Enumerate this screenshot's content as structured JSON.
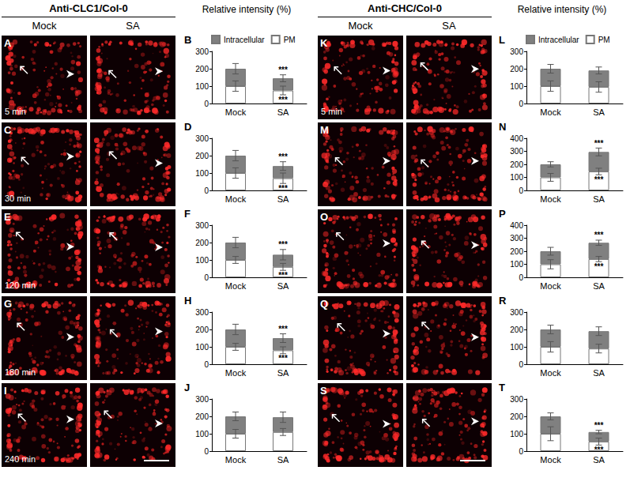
{
  "groups": [
    {
      "title": "Anti-CLC1/Col-0",
      "columns": [
        "Mock",
        "SA"
      ],
      "chart_heading": "Relative intensity (%)",
      "images": [
        {
          "letter": "A",
          "time": "5 min"
        },
        {
          "letter": "C",
          "time": "30 min"
        },
        {
          "letter": "E",
          "time": "120 min"
        },
        {
          "letter": "G",
          "time": "180 min"
        },
        {
          "letter": "I",
          "time": "240 min"
        }
      ]
    },
    {
      "title": "Anti-CHC/Col-0",
      "columns": [
        "Mock",
        "SA"
      ],
      "chart_heading": "Relative intensity (%)",
      "images": [
        {
          "letter": "K",
          "time": "5 min"
        },
        {
          "letter": "M"
        },
        {
          "letter": "O"
        },
        {
          "letter": "Q"
        },
        {
          "letter": "S"
        }
      ]
    }
  ],
  "chart_data": [
    {
      "type": "bar",
      "stacked": true,
      "letter": "B",
      "categories": [
        "Mock",
        "SA"
      ],
      "grid": false,
      "legend": "top",
      "ylim": [
        0,
        300
      ],
      "yticks": [
        0,
        100,
        200,
        300
      ],
      "series": [
        {
          "name": "PM",
          "color": "#ffffff",
          "values": [
            100,
            75
          ],
          "errors": [
            30,
            25
          ],
          "annotations": [
            null,
            "***"
          ]
        },
        {
          "name": "Intracellular",
          "color": "#808080",
          "values": [
            100,
            70
          ],
          "errors": [
            30,
            20
          ],
          "annotations": [
            null,
            "***"
          ]
        }
      ]
    },
    {
      "type": "bar",
      "stacked": true,
      "letter": "D",
      "categories": [
        "Mock",
        "SA"
      ],
      "grid": false,
      "ylim": [
        0,
        300
      ],
      "yticks": [
        0,
        100,
        200,
        300
      ],
      "series": [
        {
          "name": "PM",
          "color": "#ffffff",
          "values": [
            100,
            70
          ],
          "errors": [
            30,
            30
          ],
          "annotations": [
            null,
            "***"
          ]
        },
        {
          "name": "Intracellular",
          "color": "#808080",
          "values": [
            100,
            70
          ],
          "errors": [
            30,
            25
          ],
          "annotations": [
            null,
            "***"
          ]
        }
      ]
    },
    {
      "type": "bar",
      "stacked": true,
      "letter": "F",
      "categories": [
        "Mock",
        "SA"
      ],
      "grid": false,
      "ylim": [
        0,
        300
      ],
      "yticks": [
        0,
        100,
        200,
        300
      ],
      "series": [
        {
          "name": "PM",
          "color": "#ffffff",
          "values": [
            100,
            60
          ],
          "errors": [
            20,
            20
          ],
          "annotations": [
            null,
            "***"
          ]
        },
        {
          "name": "Intracellular",
          "color": "#808080",
          "values": [
            100,
            70
          ],
          "errors": [
            30,
            30
          ],
          "annotations": [
            null,
            "***"
          ]
        }
      ]
    },
    {
      "type": "bar",
      "stacked": true,
      "letter": "H",
      "categories": [
        "Mock",
        "SA"
      ],
      "grid": false,
      "ylim": [
        0,
        300
      ],
      "yticks": [
        0,
        100,
        200,
        300
      ],
      "series": [
        {
          "name": "PM",
          "color": "#ffffff",
          "values": [
            100,
            80
          ],
          "errors": [
            20,
            20
          ],
          "annotations": [
            null,
            "***"
          ]
        },
        {
          "name": "Intracellular",
          "color": "#808080",
          "values": [
            100,
            70
          ],
          "errors": [
            30,
            25
          ],
          "annotations": [
            null,
            "***"
          ]
        }
      ]
    },
    {
      "type": "bar",
      "stacked": true,
      "letter": "J",
      "categories": [
        "Mock",
        "SA"
      ],
      "grid": false,
      "ylim": [
        0,
        300
      ],
      "yticks": [
        0,
        100,
        200,
        300
      ],
      "series": [
        {
          "name": "PM",
          "color": "#ffffff",
          "values": [
            100,
            110
          ],
          "errors": [
            25,
            20
          ]
        },
        {
          "name": "Intracellular",
          "color": "#808080",
          "values": [
            100,
            85
          ],
          "errors": [
            25,
            30
          ]
        }
      ]
    },
    {
      "type": "bar",
      "stacked": true,
      "letter": "L",
      "categories": [
        "Mock",
        "SA"
      ],
      "grid": false,
      "legend": "top",
      "ylim": [
        0,
        300
      ],
      "yticks": [
        0,
        100,
        200,
        300
      ],
      "series": [
        {
          "name": "PM",
          "color": "#ffffff",
          "values": [
            100,
            95
          ],
          "errors": [
            30,
            30
          ]
        },
        {
          "name": "Intracellular",
          "color": "#808080",
          "values": [
            100,
            95
          ],
          "errors": [
            25,
            20
          ]
        }
      ]
    },
    {
      "type": "bar",
      "stacked": true,
      "letter": "N",
      "categories": [
        "Mock",
        "SA"
      ],
      "grid": false,
      "ylim": [
        0,
        400
      ],
      "yticks": [
        0,
        100,
        200,
        300,
        400
      ],
      "series": [
        {
          "name": "PM",
          "color": "#ffffff",
          "values": [
            100,
            145
          ],
          "errors": [
            30,
            25
          ],
          "annotations": [
            null,
            "***"
          ]
        },
        {
          "name": "Intracellular",
          "color": "#808080",
          "values": [
            100,
            150
          ],
          "errors": [
            20,
            30
          ],
          "annotations": [
            null,
            "***"
          ]
        }
      ]
    },
    {
      "type": "bar",
      "stacked": true,
      "letter": "P",
      "categories": [
        "Mock",
        "SA"
      ],
      "grid": false,
      "ylim": [
        0,
        400
      ],
      "yticks": [
        0,
        100,
        200,
        300,
        400
      ],
      "series": [
        {
          "name": "PM",
          "color": "#ffffff",
          "values": [
            100,
            140
          ],
          "errors": [
            35,
            20
          ],
          "annotations": [
            null,
            "***"
          ]
        },
        {
          "name": "Intracellular",
          "color": "#808080",
          "values": [
            100,
            125
          ],
          "errors": [
            30,
            20
          ],
          "annotations": [
            null,
            "***"
          ]
        }
      ]
    },
    {
      "type": "bar",
      "stacked": true,
      "letter": "R",
      "categories": [
        "Mock",
        "SA"
      ],
      "grid": false,
      "ylim": [
        0,
        300
      ],
      "yticks": [
        0,
        100,
        200,
        300
      ],
      "series": [
        {
          "name": "PM",
          "color": "#ffffff",
          "values": [
            100,
            90
          ],
          "errors": [
            30,
            25
          ]
        },
        {
          "name": "Intracellular",
          "color": "#808080",
          "values": [
            100,
            100
          ],
          "errors": [
            25,
            25
          ]
        }
      ]
    },
    {
      "type": "bar",
      "stacked": true,
      "letter": "T",
      "categories": [
        "Mock",
        "SA"
      ],
      "grid": false,
      "ylim": [
        0,
        300
      ],
      "yticks": [
        0,
        100,
        200,
        300
      ],
      "series": [
        {
          "name": "PM",
          "color": "#ffffff",
          "values": [
            100,
            55
          ],
          "errors": [
            40,
            20
          ],
          "annotations": [
            null,
            "***"
          ]
        },
        {
          "name": "Intracellular",
          "color": "#808080",
          "values": [
            100,
            55
          ],
          "errors": [
            20,
            10
          ],
          "annotations": [
            null,
            "***"
          ]
        }
      ]
    }
  ]
}
